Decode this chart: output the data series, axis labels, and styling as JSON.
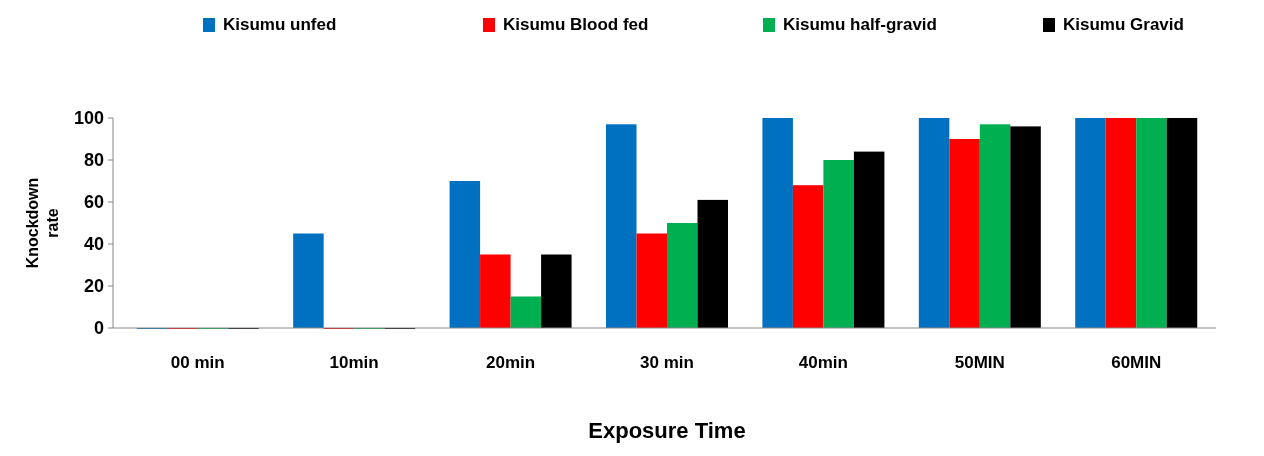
{
  "chart_data": {
    "type": "bar",
    "xlabel": "Exposure Time",
    "ylabel": "Knockdown rate",
    "categories": [
      "00 min",
      "10min",
      "20min",
      "30 min",
      "40min",
      "50MIN",
      "60MIN"
    ],
    "series": [
      {
        "name": "Kisumu unfed",
        "color": "#0070c0",
        "values": [
          0,
          45,
          70,
          97,
          100,
          100,
          100
        ]
      },
      {
        "name": "Kisumu Blood fed",
        "color": "#ff0000",
        "values": [
          0,
          0,
          35,
          45,
          68,
          90,
          100
        ]
      },
      {
        "name": "Kisumu half-gravid",
        "color": "#00b050",
        "values": [
          0,
          0,
          15,
          50,
          80,
          97,
          100
        ]
      },
      {
        "name": "Kisumu Gravid",
        "color": "#000000",
        "values": [
          0,
          0,
          35,
          61,
          84,
          96,
          100
        ]
      }
    ],
    "ylim": [
      0,
      100
    ],
    "yticks": [
      0,
      20,
      40,
      60,
      80,
      100
    ],
    "legend": "top"
  }
}
